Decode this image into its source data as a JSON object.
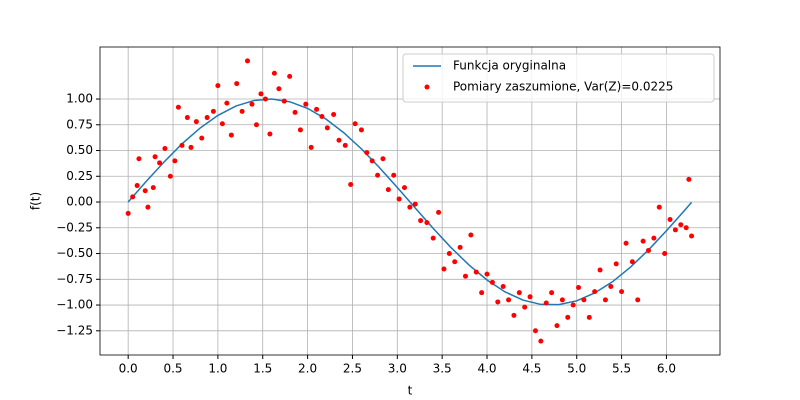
{
  "chart_data": {
    "type": "line",
    "xlabel": "t",
    "ylabel": "f(t)",
    "xlim": [
      -0.314,
      6.597
    ],
    "ylim": [
      -1.485,
      1.505
    ],
    "xticks": [
      {
        "value": 0,
        "label": "0.0"
      },
      0.5,
      {
        "value": 1,
        "label": "1.0"
      },
      1.5,
      {
        "value": 2,
        "label": "2.0"
      },
      2.5,
      {
        "value": 3,
        "label": "3.0"
      },
      3.5,
      {
        "value": 4,
        "label": "4.0"
      },
      4.5,
      {
        "value": 5,
        "label": "5.0"
      },
      5.5,
      {
        "value": 6,
        "label": "6.0"
      }
    ],
    "yticks": [
      {
        "value": -1.25,
        "label": "−1.25"
      },
      {
        "value": -1,
        "label": "−1.00"
      },
      {
        "value": -0.75,
        "label": "−0.75"
      },
      {
        "value": -0.5,
        "label": "−0.50"
      },
      {
        "value": -0.25,
        "label": "−0.25"
      },
      {
        "value": 0,
        "label": "0.00"
      },
      0.25,
      {
        "value": 0.5,
        "label": "0.50"
      },
      0.75,
      {
        "value": 1,
        "label": "1.00"
      }
    ],
    "grid": true,
    "legend": "upper right",
    "series": [
      {
        "name": "Funkcja oryginalna",
        "type": "line",
        "color": "#1f77b4",
        "x": [
          0,
          0.2,
          0.4,
          0.6,
          0.8,
          1.0,
          1.2,
          1.4,
          1.6,
          1.8,
          2.0,
          2.2,
          2.4,
          2.6,
          2.8,
          3.0,
          3.2,
          3.4,
          3.6,
          3.8,
          4.0,
          4.2,
          4.4,
          4.6,
          4.8,
          5.0,
          5.2,
          5.4,
          5.6,
          5.8,
          6.0,
          6.2,
          6.28
        ],
        "values": [
          0,
          0.199,
          0.389,
          0.565,
          0.717,
          0.841,
          0.932,
          0.985,
          1.0,
          0.974,
          0.909,
          0.808,
          0.675,
          0.516,
          0.335,
          0.141,
          -0.058,
          -0.256,
          -0.443,
          -0.612,
          -0.757,
          -0.872,
          -0.952,
          -0.994,
          -0.996,
          -0.959,
          -0.883,
          -0.773,
          -0.631,
          -0.465,
          -0.279,
          -0.083,
          -0.003
        ]
      },
      {
        "name": "Pomiary zaszumione, Var(Z)=0.0225",
        "type": "scatter",
        "color": "#ff0000",
        "x": [
          0.0,
          0.05,
          0.1,
          0.12,
          0.19,
          0.22,
          0.28,
          0.3,
          0.35,
          0.41,
          0.47,
          0.52,
          0.56,
          0.6,
          0.66,
          0.7,
          0.76,
          0.82,
          0.88,
          0.95,
          1.0,
          1.05,
          1.1,
          1.15,
          1.21,
          1.27,
          1.33,
          1.38,
          1.43,
          1.48,
          1.53,
          1.58,
          1.63,
          1.68,
          1.74,
          1.8,
          1.86,
          1.92,
          1.98,
          2.04,
          2.1,
          2.16,
          2.22,
          2.29,
          2.35,
          2.42,
          2.48,
          2.53,
          2.6,
          2.66,
          2.72,
          2.78,
          2.84,
          2.9,
          2.96,
          3.02,
          3.08,
          3.14,
          3.2,
          3.26,
          3.33,
          3.4,
          3.46,
          3.52,
          3.58,
          3.64,
          3.7,
          3.76,
          3.82,
          3.88,
          3.94,
          4.0,
          4.06,
          4.12,
          4.18,
          4.24,
          4.3,
          4.36,
          4.42,
          4.48,
          4.54,
          4.6,
          4.66,
          4.72,
          4.78,
          4.84,
          4.9,
          4.96,
          5.02,
          5.08,
          5.14,
          5.2,
          5.26,
          5.32,
          5.38,
          5.44,
          5.5,
          5.55,
          5.62,
          5.68,
          5.74,
          5.8,
          5.86,
          5.92,
          5.98,
          6.04,
          6.1,
          6.16,
          6.22,
          6.25,
          6.28
        ],
        "values": [
          -0.11,
          0.05,
          0.16,
          0.42,
          0.11,
          -0.05,
          0.14,
          0.44,
          0.38,
          0.52,
          0.25,
          0.4,
          0.92,
          0.55,
          0.82,
          0.53,
          0.78,
          0.62,
          0.82,
          0.88,
          1.13,
          0.76,
          0.96,
          0.65,
          1.15,
          0.88,
          1.37,
          0.95,
          0.75,
          1.05,
          1.0,
          0.66,
          1.25,
          1.1,
          0.98,
          1.22,
          0.87,
          0.7,
          0.95,
          0.53,
          0.9,
          0.83,
          0.72,
          0.85,
          0.6,
          0.55,
          0.17,
          0.76,
          0.7,
          0.48,
          0.4,
          0.26,
          0.42,
          0.12,
          0.26,
          0.03,
          0.14,
          -0.05,
          -0.02,
          -0.18,
          -0.2,
          -0.35,
          -0.1,
          -0.65,
          -0.5,
          -0.58,
          -0.44,
          -0.72,
          -0.32,
          -0.68,
          -0.88,
          -0.7,
          -0.78,
          -0.97,
          -0.82,
          -0.95,
          -1.1,
          -0.88,
          -1.02,
          -0.92,
          -1.25,
          -1.35,
          -0.98,
          -0.88,
          -1.2,
          -0.95,
          -1.12,
          -1.0,
          -0.83,
          -0.95,
          -1.12,
          -0.87,
          -0.66,
          -0.95,
          -0.82,
          -0.6,
          -0.87,
          -0.4,
          -0.58,
          -0.95,
          -0.38,
          -0.47,
          -0.35,
          -0.05,
          -0.5,
          -0.17,
          -0.27,
          -0.22,
          -0.25,
          0.22,
          -0.33
        ]
      }
    ]
  }
}
